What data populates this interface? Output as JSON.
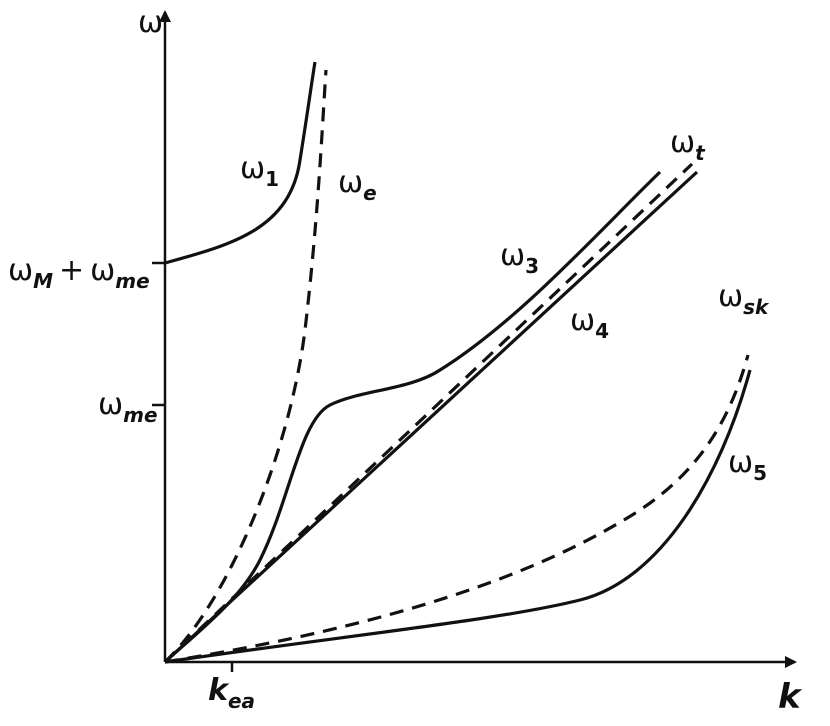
{
  "axes": {
    "y_label": "ω",
    "x_label": "k"
  },
  "ticks": {
    "y_upper": {
      "symbol": "ω",
      "subscript": "M",
      "operator": "+",
      "symbol2": "ω",
      "subscript2": "me"
    },
    "y_lower": {
      "symbol": "ω",
      "subscript": "me"
    },
    "x": {
      "symbol": "k",
      "subscript": "ea"
    }
  },
  "curves": [
    {
      "symbol": "ω",
      "subscript": "1"
    },
    {
      "symbol": "ω",
      "subscript": "e"
    },
    {
      "symbol": "ω",
      "subscript": "t"
    },
    {
      "symbol": "ω",
      "subscript": "3"
    },
    {
      "symbol": "ω",
      "subscript": "4"
    },
    {
      "symbol": "ω",
      "subscript": "sk"
    },
    {
      "symbol": "ω",
      "subscript": "5"
    }
  ]
}
